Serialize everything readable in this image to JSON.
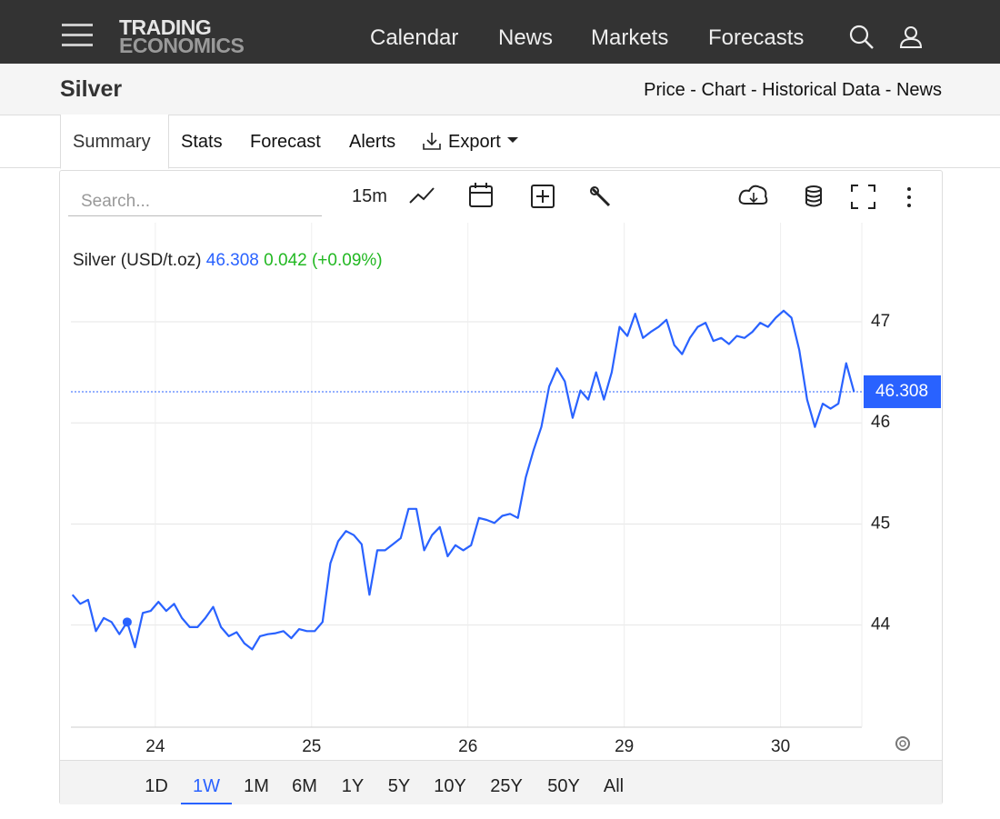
{
  "header": {
    "logo": [
      "TRADING",
      "ECONOMICS"
    ],
    "nav": [
      "Calendar",
      "News",
      "Markets",
      "Forecasts"
    ]
  },
  "page": {
    "title": "Silver",
    "breadcrumb": "Price - Chart - Historical Data - News"
  },
  "tabs": [
    "Summary",
    "Stats",
    "Forecast",
    "Alerts",
    "Export"
  ],
  "toolbar": {
    "search": "Search...",
    "interval": "15m"
  },
  "ranges": {
    "items": [
      "1D",
      "1W",
      "1M",
      "6M",
      "1Y",
      "5Y",
      "10Y",
      "25Y",
      "50Y",
      "All"
    ],
    "active": "1W"
  },
  "chart_data": {
    "type": "line",
    "legend": {
      "change": 0.042,
      "change_pct": "(+0.09%)"
    },
    "series": [
      {
        "name": "Silver (USD/t.oz)",
        "color": "#2962ff",
        "values": [
          44.3,
          44.21,
          44.25,
          43.94,
          44.07,
          44.03,
          43.91,
          44.03,
          43.78,
          44.12,
          44.14,
          44.23,
          44.14,
          44.21,
          44.07,
          43.98,
          43.98,
          44.07,
          44.18,
          43.98,
          43.89,
          43.93,
          43.82,
          43.76,
          43.89,
          43.91,
          43.92,
          43.94,
          43.87,
          43.96,
          43.94,
          43.94,
          44.03,
          44.61,
          44.83,
          44.93,
          44.89,
          44.8,
          44.3,
          44.74,
          44.74,
          44.8,
          44.86,
          45.15,
          45.15,
          44.74,
          44.89,
          44.97,
          44.68,
          44.79,
          44.74,
          44.79,
          45.06,
          45.04,
          45.01,
          45.08,
          45.1,
          45.06,
          45.46,
          45.73,
          45.96,
          46.36,
          46.54,
          46.41,
          46.05,
          46.32,
          46.23,
          46.5,
          46.23,
          46.5,
          46.95,
          46.86,
          47.08,
          46.84,
          46.9,
          46.95,
          47.02,
          46.77,
          46.68,
          46.84,
          46.95,
          46.99,
          46.81,
          46.84,
          46.78,
          46.86,
          46.84,
          46.9,
          46.99,
          46.95,
          47.04,
          47.11,
          47.04,
          46.72,
          46.23,
          45.96,
          46.19,
          46.14,
          46.19,
          46.59,
          46.308
        ]
      }
    ],
    "xlim": [
      -0.2,
      101
    ],
    "xticks": [
      {
        "value": 10.6,
        "label": "24"
      },
      {
        "value": 30.6,
        "label": "25"
      },
      {
        "value": 50.6,
        "label": "26"
      },
      {
        "value": 70.6,
        "label": "29"
      },
      {
        "value": 90.6,
        "label": "30"
      }
    ],
    "ylim": [
      42.99,
      47.98
    ],
    "yticks": [
      44,
      45,
      46,
      47
    ],
    "grid": true
  }
}
